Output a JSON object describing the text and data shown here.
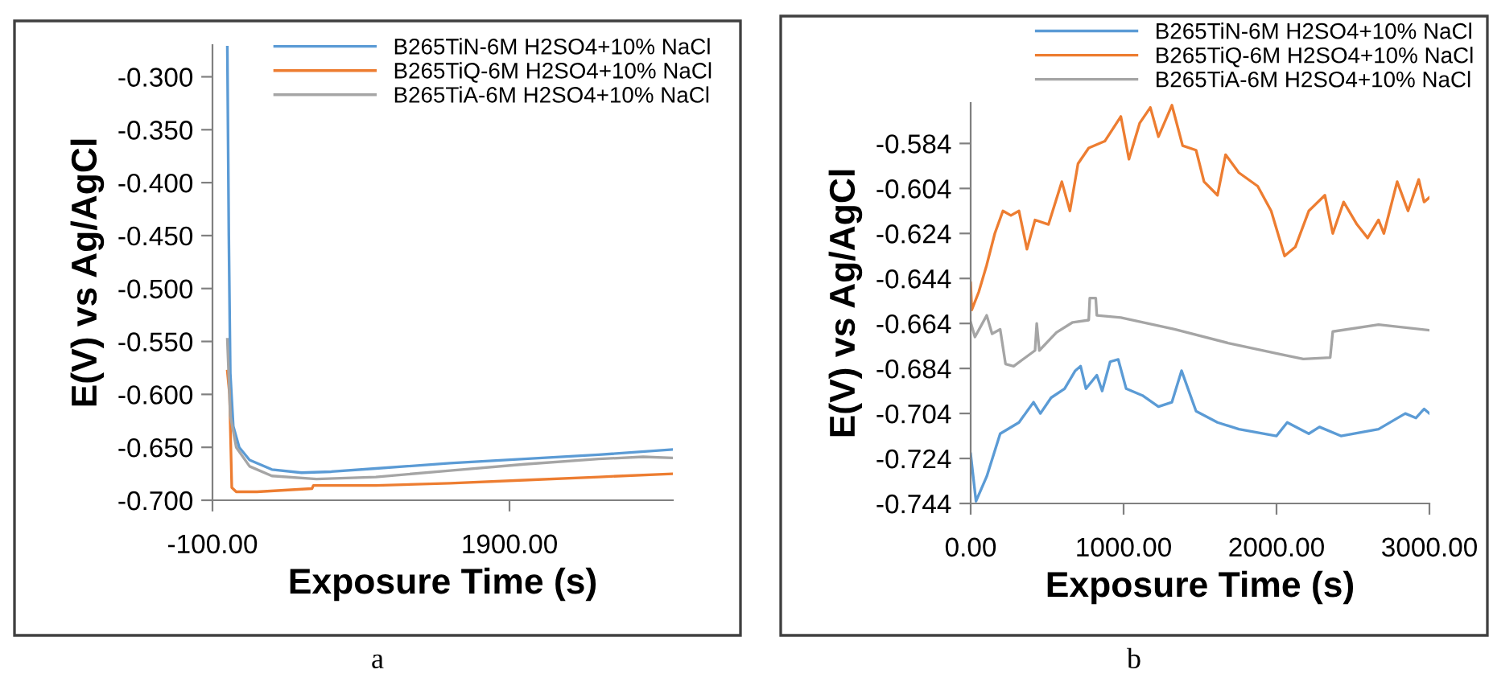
{
  "chart_data": [
    {
      "type": "line",
      "xlabel": "Exposure Time (s)",
      "ylabel": "E(V) vs Ag/AgCl",
      "annotations": [
        "a"
      ],
      "xlim": [
        -100,
        3000
      ],
      "xticks": [
        {
          "value": -100,
          "label": "-100.00"
        },
        {
          "value": 1900,
          "label": "1900.00"
        }
      ],
      "ylim": [
        -0.7,
        -0.27
      ],
      "yticks": [
        {
          "value": -0.7,
          "label": "-0.700"
        },
        {
          "value": -0.65,
          "label": "-0.650"
        },
        {
          "value": -0.6,
          "label": "-0.600"
        },
        {
          "value": -0.55,
          "label": "-0.550"
        },
        {
          "value": -0.5,
          "label": "-0.500"
        },
        {
          "value": -0.45,
          "label": "-0.450"
        },
        {
          "value": -0.4,
          "label": "-0.400"
        },
        {
          "value": -0.35,
          "label": "-0.350"
        },
        {
          "value": -0.3,
          "label": "-0.300"
        }
      ],
      "grid": false,
      "legend": "top right",
      "marker": "none",
      "line_style": "solid",
      "series": [
        {
          "name": "B265TiN-6M H2SO4+10% NaCl",
          "color": "#5b9bd5",
          "x": [
            0,
            10,
            20,
            40,
            80,
            150,
            300,
            500,
            700,
            1000,
            1500,
            2000,
            2500,
            3000
          ],
          "values": [
            -0.272,
            -0.45,
            -0.58,
            -0.63,
            -0.65,
            -0.662,
            -0.671,
            -0.674,
            -0.673,
            -0.67,
            -0.665,
            -0.661,
            -0.657,
            -0.652
          ]
        },
        {
          "name": "B265TiQ-6M H2SO4+10% NaCl",
          "color": "#ed7d31",
          "x": [
            0,
            15,
            30,
            60,
            200,
            570,
            580,
            1000,
            1500,
            2000,
            2500,
            3000
          ],
          "values": [
            -0.578,
            -0.6,
            -0.688,
            -0.692,
            -0.692,
            -0.689,
            -0.686,
            -0.686,
            -0.684,
            -0.681,
            -0.678,
            -0.675
          ]
        },
        {
          "name": "B265TiA-6M H2SO4+10% NaCl",
          "color": "#a5a5a5",
          "x": [
            0,
            20,
            60,
            150,
            300,
            600,
            1000,
            1500,
            2000,
            2500,
            2800,
            3000
          ],
          "values": [
            -0.548,
            -0.62,
            -0.65,
            -0.668,
            -0.677,
            -0.68,
            -0.678,
            -0.672,
            -0.666,
            -0.661,
            -0.659,
            -0.66
          ]
        }
      ]
    },
    {
      "type": "line",
      "xlabel": "Exposure Time (s)",
      "ylabel": "E(V) vs Ag/AgCl",
      "annotations": [
        "b"
      ],
      "xlim": [
        0,
        3000
      ],
      "xticks": [
        {
          "value": 0,
          "label": "0.00"
        },
        {
          "value": 1000,
          "label": "1000.00"
        },
        {
          "value": 2000,
          "label": "2000.00"
        },
        {
          "value": 3000,
          "label": "3000.00"
        }
      ],
      "ylim": [
        -0.744,
        -0.566
      ],
      "yticks": [
        -0.744,
        -0.724,
        -0.704,
        -0.684,
        -0.664,
        -0.644,
        -0.624,
        -0.604,
        -0.584
      ],
      "grid": false,
      "legend": "top",
      "marker": "none",
      "line_style": "solid",
      "series": [
        {
          "name": "B265TiN-6M H2SO4+10% NaCl",
          "color": "#5b9bd5",
          "x": [
            0,
            35,
            105,
            193,
            316,
            411,
            456,
            526,
            614,
            684,
            719,
            754,
            825,
            860,
            912,
            965,
            1017,
            1123,
            1228,
            1316,
            1379,
            1474,
            1614,
            1754,
            2000,
            2070,
            2211,
            2281,
            2421,
            2667,
            2842,
            2912,
            2965,
            3000
          ],
          "values": [
            -0.722,
            -0.743,
            -0.732,
            -0.713,
            -0.708,
            -0.699,
            -0.704,
            -0.697,
            -0.693,
            -0.685,
            -0.683,
            -0.693,
            -0.687,
            -0.694,
            -0.681,
            -0.68,
            -0.693,
            -0.696,
            -0.701,
            -0.699,
            -0.685,
            -0.703,
            -0.708,
            -0.711,
            -0.714,
            -0.708,
            -0.713,
            -0.71,
            -0.714,
            -0.711,
            -0.704,
            -0.706,
            -0.702,
            -0.704
          ]
        },
        {
          "name": "B265TiQ-6M H2SO4+10% NaCl",
          "color": "#ed7d31",
          "x": [
            0,
            7,
            53,
            105,
            158,
            211,
            263,
            316,
            368,
            421,
            509,
            596,
            649,
            702,
            772,
            877,
            982,
            1035,
            1105,
            1175,
            1228,
            1316,
            1386,
            1474,
            1526,
            1614,
            1667,
            1754,
            1877,
            1965,
            2053,
            2123,
            2211,
            2316,
            2368,
            2439,
            2526,
            2596,
            2667,
            2702,
            2789,
            2860,
            2930,
            2965,
            3000
          ],
          "values": [
            -0.646,
            -0.658,
            -0.65,
            -0.638,
            -0.624,
            -0.614,
            -0.616,
            -0.614,
            -0.631,
            -0.618,
            -0.62,
            -0.601,
            -0.614,
            -0.593,
            -0.586,
            -0.583,
            -0.572,
            -0.591,
            -0.575,
            -0.568,
            -0.581,
            -0.567,
            -0.585,
            -0.587,
            -0.601,
            -0.607,
            -0.589,
            -0.597,
            -0.603,
            -0.614,
            -0.634,
            -0.63,
            -0.614,
            -0.607,
            -0.624,
            -0.61,
            -0.62,
            -0.626,
            -0.618,
            -0.624,
            -0.601,
            -0.614,
            -0.6,
            -0.61,
            -0.608
          ]
        },
        {
          "name": "B265TiA-6M H2SO4+10% NaCl",
          "color": "#a5a5a5",
          "x": [
            0,
            28,
            105,
            140,
            193,
            228,
            281,
            421,
            432,
            449,
            561,
            667,
            772,
            779,
            818,
            825,
            982,
            1333,
            1684,
            2035,
            2175,
            2351,
            2368,
            2667,
            3000
          ],
          "values": [
            -0.6635,
            -0.67,
            -0.6604,
            -0.6686,
            -0.6666,
            -0.682,
            -0.683,
            -0.676,
            -0.664,
            -0.676,
            -0.668,
            -0.6635,
            -0.6625,
            -0.6527,
            -0.6527,
            -0.6604,
            -0.6614,
            -0.6666,
            -0.6727,
            -0.6778,
            -0.6798,
            -0.6792,
            -0.6676,
            -0.6645,
            -0.667
          ]
        }
      ]
    }
  ]
}
